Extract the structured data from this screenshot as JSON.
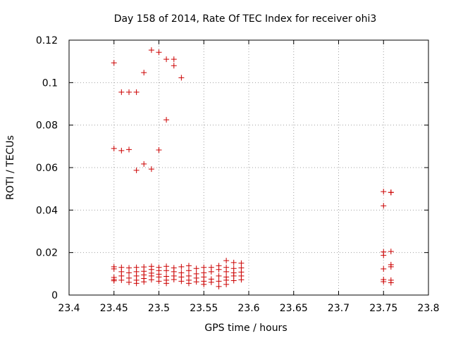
{
  "chart_data": {
    "type": "scatter",
    "title": "Day 158 of 2014, Rate Of TEC Index for receiver ohi3",
    "xlabel": "GPS time / hours",
    "ylabel": "ROTI / TECUs",
    "xlim": [
      23.4,
      23.8
    ],
    "ylim": [
      0,
      0.12
    ],
    "xticks": [
      23.4,
      23.45,
      23.5,
      23.55,
      23.6,
      23.65,
      23.7,
      23.75,
      23.8
    ],
    "xtick_labels": [
      "23.4",
      "23.45",
      "23.5",
      "23.55",
      "23.6",
      "23.65",
      "23.7",
      "23.75",
      "23.8"
    ],
    "yticks": [
      0,
      0.02,
      0.04,
      0.06,
      0.08,
      0.1,
      0.12
    ],
    "ytick_labels": [
      "0",
      "0.02",
      "0.04",
      "0.06",
      "0.08",
      "0.1",
      "0.12"
    ],
    "grid": true,
    "marker": "+",
    "marker_color": "#cc0000",
    "series": [
      {
        "name": "ROTI",
        "points": [
          [
            23.45,
            0.1093
          ],
          [
            23.4583,
            0.0955
          ],
          [
            23.4667,
            0.0955
          ],
          [
            23.475,
            0.0955
          ],
          [
            23.4833,
            0.1047
          ],
          [
            23.4917,
            0.1153
          ],
          [
            23.5,
            0.1143
          ],
          [
            23.5083,
            0.111
          ],
          [
            23.5167,
            0.111
          ],
          [
            23.5167,
            0.108
          ],
          [
            23.525,
            0.1023
          ],
          [
            23.5083,
            0.0825
          ],
          [
            23.45,
            0.069
          ],
          [
            23.4583,
            0.068
          ],
          [
            23.4667,
            0.0685
          ],
          [
            23.475,
            0.0587
          ],
          [
            23.4833,
            0.0617
          ],
          [
            23.4917,
            0.0593
          ],
          [
            23.5,
            0.0683
          ],
          [
            23.45,
            0.0133
          ],
          [
            23.45,
            0.0123
          ],
          [
            23.45,
            0.0083
          ],
          [
            23.45,
            0.0073
          ],
          [
            23.45,
            0.0067
          ],
          [
            23.4583,
            0.013
          ],
          [
            23.4583,
            0.011
          ],
          [
            23.4583,
            0.009
          ],
          [
            23.4583,
            0.007
          ],
          [
            23.4667,
            0.0128
          ],
          [
            23.4667,
            0.0105
          ],
          [
            23.4667,
            0.008
          ],
          [
            23.4667,
            0.006
          ],
          [
            23.475,
            0.013
          ],
          [
            23.475,
            0.011
          ],
          [
            23.475,
            0.009
          ],
          [
            23.475,
            0.007
          ],
          [
            23.475,
            0.0055
          ],
          [
            23.4833,
            0.0132
          ],
          [
            23.4833,
            0.0112
          ],
          [
            23.4833,
            0.0095
          ],
          [
            23.4833,
            0.0078
          ],
          [
            23.4833,
            0.0062
          ],
          [
            23.4917,
            0.0135
          ],
          [
            23.4917,
            0.012
          ],
          [
            23.4917,
            0.0103
          ],
          [
            23.4917,
            0.009
          ],
          [
            23.4917,
            0.0072
          ],
          [
            23.5,
            0.013
          ],
          [
            23.5,
            0.0115
          ],
          [
            23.5,
            0.0098
          ],
          [
            23.5,
            0.0085
          ],
          [
            23.5,
            0.0065
          ],
          [
            23.5083,
            0.0135
          ],
          [
            23.5083,
            0.0115
          ],
          [
            23.5083,
            0.0088
          ],
          [
            23.5083,
            0.007
          ],
          [
            23.5083,
            0.0055
          ],
          [
            23.5167,
            0.0128
          ],
          [
            23.5167,
            0.011
          ],
          [
            23.5167,
            0.009
          ],
          [
            23.5167,
            0.0073
          ],
          [
            23.525,
            0.0133
          ],
          [
            23.525,
            0.0105
          ],
          [
            23.525,
            0.0085
          ],
          [
            23.525,
            0.0065
          ],
          [
            23.5333,
            0.0138
          ],
          [
            23.5333,
            0.0115
          ],
          [
            23.5333,
            0.009
          ],
          [
            23.5333,
            0.007
          ],
          [
            23.5333,
            0.0055
          ],
          [
            23.5417,
            0.0125
          ],
          [
            23.5417,
            0.01
          ],
          [
            23.5417,
            0.008
          ],
          [
            23.5417,
            0.0062
          ],
          [
            23.55,
            0.013
          ],
          [
            23.55,
            0.0105
          ],
          [
            23.55,
            0.0085
          ],
          [
            23.55,
            0.0065
          ],
          [
            23.55,
            0.005
          ],
          [
            23.5583,
            0.013
          ],
          [
            23.5583,
            0.011
          ],
          [
            23.5583,
            0.0075
          ],
          [
            23.5583,
            0.006
          ],
          [
            23.5667,
            0.0138
          ],
          [
            23.5667,
            0.012
          ],
          [
            23.5667,
            0.009
          ],
          [
            23.5667,
            0.0065
          ],
          [
            23.5667,
            0.004
          ],
          [
            23.575,
            0.0162
          ],
          [
            23.575,
            0.013
          ],
          [
            23.575,
            0.011
          ],
          [
            23.575,
            0.0085
          ],
          [
            23.575,
            0.007
          ],
          [
            23.575,
            0.005
          ],
          [
            23.5833,
            0.0153
          ],
          [
            23.5833,
            0.0125
          ],
          [
            23.5833,
            0.0105
          ],
          [
            23.5833,
            0.009
          ],
          [
            23.5833,
            0.0068
          ],
          [
            23.5917,
            0.015
          ],
          [
            23.5917,
            0.0128
          ],
          [
            23.5917,
            0.0108
          ],
          [
            23.5917,
            0.009
          ],
          [
            23.5917,
            0.0072
          ],
          [
            23.75,
            0.0487
          ],
          [
            23.75,
            0.042
          ],
          [
            23.75,
            0.0203
          ],
          [
            23.75,
            0.0187
          ],
          [
            23.75,
            0.0123
          ],
          [
            23.75,
            0.0073
          ],
          [
            23.75,
            0.0063
          ],
          [
            23.7583,
            0.0483
          ],
          [
            23.7583,
            0.0483
          ],
          [
            23.7583,
            0.0205
          ],
          [
            23.7583,
            0.0143
          ],
          [
            23.7583,
            0.0133
          ],
          [
            23.7583,
            0.007
          ],
          [
            23.7583,
            0.0058
          ]
        ]
      }
    ]
  }
}
